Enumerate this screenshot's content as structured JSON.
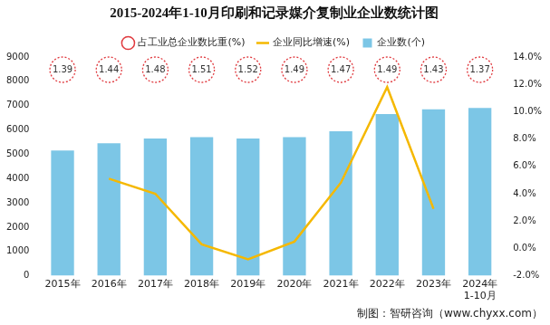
{
  "chart_data": {
    "type": "bar",
    "title": "2015-2024年1-10月印刷和记录媒介复制业企业数统计图",
    "source": "制图：智研咨询（www.chyxx.com）",
    "categories": [
      "2015年",
      "2016年",
      "2017年",
      "2018年",
      "2019年",
      "2020年",
      "2021年",
      "2022年",
      "2023年",
      "2024年\n1-10月"
    ],
    "series": [
      {
        "name": "企业数(个)",
        "type": "bar",
        "color": "#7cc6e6",
        "values": [
          5150,
          5450,
          5650,
          5700,
          5650,
          5700,
          5950,
          6650,
          6850,
          6900
        ]
      },
      {
        "name": "占工业总企业数比重(%)",
        "type": "label",
        "color": "#e0393e",
        "data_labels": true,
        "values": [
          1.39,
          1.44,
          1.48,
          1.51,
          1.52,
          1.49,
          1.47,
          1.49,
          1.43,
          1.37
        ]
      },
      {
        "name": "企业同比增速(%)",
        "type": "line",
        "color": "#f5b800",
        "axis": "y2",
        "values": [
          null,
          5.1,
          4.0,
          0.3,
          -0.8,
          0.5,
          4.8,
          11.8,
          2.9,
          null
        ]
      }
    ],
    "ylim": [
      0,
      9000
    ],
    "yticks": [
      0,
      1000,
      2000,
      3000,
      4000,
      5000,
      6000,
      7000,
      8000,
      9000
    ],
    "y2lim": [
      -2,
      14
    ],
    "y2ticks": [
      {
        "value": -2,
        "label": "-2.0%"
      },
      {
        "value": 0,
        "label": "0.0%"
      },
      {
        "value": 2,
        "label": "2.0%"
      },
      {
        "value": 4,
        "label": "4.0%"
      },
      {
        "value": 6,
        "label": "6.0%"
      },
      {
        "value": 8,
        "label": "8.0%"
      },
      {
        "value": 10,
        "label": "10.0%"
      },
      {
        "value": 12,
        "label": "12.0%"
      },
      {
        "value": 14,
        "label": "14.0%"
      }
    ],
    "grid": false,
    "legend": "top"
  }
}
